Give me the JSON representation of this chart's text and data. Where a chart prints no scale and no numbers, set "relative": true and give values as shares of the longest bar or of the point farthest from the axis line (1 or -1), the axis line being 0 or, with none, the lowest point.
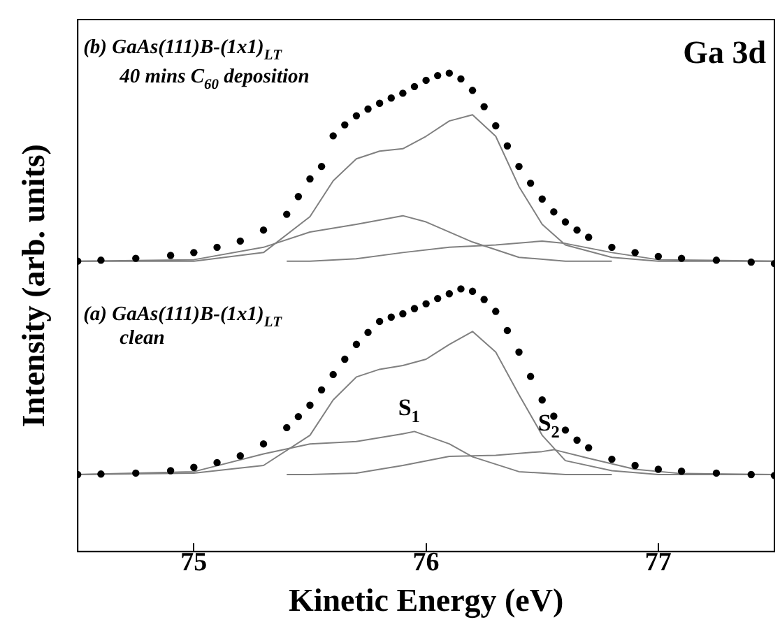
{
  "chart_data": {
    "type": "line",
    "relative": true,
    "xlabel": "Kinetic Energy (eV)",
    "ylabel": "Intensity (arb. units)",
    "xlim": [
      74.5,
      77.5
    ],
    "xticks": [
      75,
      76,
      77
    ],
    "grid": false,
    "legend": false,
    "tick_labels": "x",
    "annotations": [
      "(b) GaAs(111)B-(1x1)$_{LT}$",
      "40 mins C$_{60}$ deposition",
      "Ga 3d",
      "(a) GaAs(111)B-(1x1)$_{LT}$",
      "clean",
      "S$_{1}$",
      "S$_{2}$"
    ],
    "series": [
      {
        "type": "scatter",
        "marker": "circle",
        "color": "#000000",
        "x": [
          74.5,
          74.6,
          74.75,
          74.9,
          75.0,
          75.1,
          75.2,
          75.3,
          75.4,
          75.45,
          75.5,
          75.55,
          75.6,
          75.65,
          75.7,
          75.75,
          75.8,
          75.85,
          75.9,
          75.95,
          76.0,
          76.05,
          76.1,
          76.15,
          76.2,
          76.25,
          76.3,
          76.35,
          76.4,
          76.45,
          76.5,
          76.55,
          76.6,
          76.65,
          76.7,
          76.8,
          76.9,
          77.0,
          77.1,
          77.25,
          77.4,
          77.5
        ],
        "values": [
          0.607,
          0.609,
          0.613,
          0.619,
          0.625,
          0.636,
          0.649,
          0.672,
          0.705,
          0.742,
          0.779,
          0.805,
          0.869,
          0.892,
          0.911,
          0.925,
          0.937,
          0.948,
          0.958,
          0.972,
          0.985,
          0.995,
          1.0,
          0.988,
          0.964,
          0.93,
          0.89,
          0.848,
          0.805,
          0.77,
          0.737,
          0.71,
          0.689,
          0.672,
          0.657,
          0.636,
          0.625,
          0.617,
          0.613,
          0.609,
          0.605,
          0.602
        ]
      },
      {
        "marker": "none",
        "color": "#808080",
        "x": [
          74.5,
          75.0,
          75.3,
          75.5,
          75.6,
          75.7,
          75.8,
          75.9,
          76.0,
          76.1,
          76.2,
          76.3,
          76.4,
          76.5,
          76.6,
          76.8,
          77.0,
          77.5
        ],
        "values": [
          0.607,
          0.607,
          0.625,
          0.7,
          0.775,
          0.821,
          0.837,
          0.842,
          0.868,
          0.9,
          0.913,
          0.868,
          0.763,
          0.684,
          0.641,
          0.615,
          0.607,
          0.607
        ]
      },
      {
        "marker": "none",
        "color": "#808080",
        "x": [
          74.5,
          75.0,
          75.3,
          75.5,
          75.7,
          75.9,
          76.0,
          76.2,
          76.4,
          76.6,
          76.8
        ],
        "values": [
          0.607,
          0.61,
          0.636,
          0.668,
          0.684,
          0.702,
          0.689,
          0.647,
          0.615,
          0.607,
          0.607
        ]
      },
      {
        "marker": "none",
        "color": "#808080",
        "x": [
          75.4,
          75.5,
          75.7,
          75.9,
          76.1,
          76.3,
          76.5,
          76.6,
          76.8,
          77.0,
          77.5
        ],
        "values": [
          0.607,
          0.607,
          0.612,
          0.625,
          0.636,
          0.641,
          0.649,
          0.644,
          0.625,
          0.61,
          0.607
        ]
      },
      {
        "type": "scatter",
        "marker": "circle",
        "color": "#000000",
        "x": [
          74.5,
          74.6,
          74.75,
          74.9,
          75.0,
          75.1,
          75.2,
          75.3,
          75.4,
          75.45,
          75.5,
          75.55,
          75.6,
          75.65,
          75.7,
          75.75,
          75.8,
          75.85,
          75.9,
          75.95,
          76.0,
          76.05,
          76.1,
          76.15,
          76.2,
          76.25,
          76.3,
          76.35,
          76.4,
          76.45,
          76.5,
          76.55,
          76.6,
          76.65,
          76.7,
          76.8,
          76.9,
          77.0,
          77.1,
          77.25,
          77.4,
          77.5
        ],
        "values": [
          0.161,
          0.162,
          0.164,
          0.169,
          0.176,
          0.186,
          0.2,
          0.225,
          0.259,
          0.282,
          0.306,
          0.338,
          0.37,
          0.402,
          0.433,
          0.458,
          0.481,
          0.49,
          0.497,
          0.508,
          0.518,
          0.529,
          0.539,
          0.549,
          0.544,
          0.527,
          0.502,
          0.462,
          0.417,
          0.366,
          0.317,
          0.283,
          0.254,
          0.233,
          0.217,
          0.193,
          0.18,
          0.172,
          0.168,
          0.164,
          0.161,
          0.159
        ]
      },
      {
        "marker": "none",
        "color": "#808080",
        "x": [
          74.5,
          75.0,
          75.3,
          75.5,
          75.6,
          75.7,
          75.8,
          75.9,
          76.0,
          76.1,
          76.2,
          76.3,
          76.4,
          76.5,
          76.6,
          76.8,
          77.0,
          77.5
        ],
        "values": [
          0.161,
          0.164,
          0.18,
          0.243,
          0.317,
          0.365,
          0.381,
          0.389,
          0.402,
          0.433,
          0.46,
          0.417,
          0.328,
          0.243,
          0.19,
          0.169,
          0.161,
          0.161
        ]
      },
      {
        "marker": "none",
        "color": "#808080",
        "x": [
          74.5,
          75.0,
          75.3,
          75.5,
          75.7,
          75.9,
          75.95,
          76.1,
          76.2,
          76.4,
          76.6,
          76.8
        ],
        "values": [
          0.161,
          0.167,
          0.204,
          0.225,
          0.23,
          0.246,
          0.251,
          0.225,
          0.198,
          0.167,
          0.161,
          0.161
        ]
      },
      {
        "marker": "none",
        "color": "#808080",
        "x": [
          75.4,
          75.5,
          75.7,
          75.9,
          76.1,
          76.3,
          76.5,
          76.55,
          76.7,
          76.9,
          77.1,
          77.5
        ],
        "values": [
          0.161,
          0.161,
          0.164,
          0.18,
          0.199,
          0.201,
          0.209,
          0.213,
          0.195,
          0.172,
          0.163,
          0.161
        ]
      }
    ]
  }
}
